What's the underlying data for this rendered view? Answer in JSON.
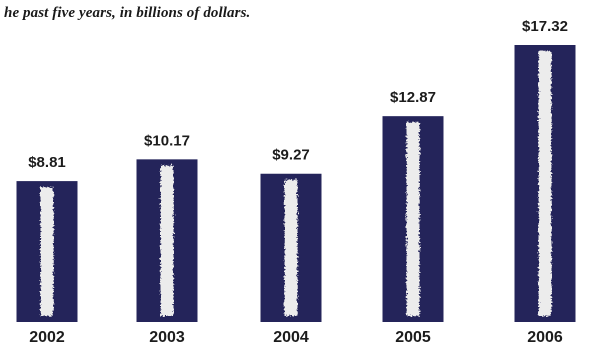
{
  "chart_data": {
    "type": "bar",
    "title": "",
    "subtitle": "he past five years, in billions of dollars.",
    "xlabel": "",
    "ylabel": "",
    "categories": [
      "2002",
      "2003",
      "2004",
      "2005",
      "2006"
    ],
    "values": [
      8.81,
      10.17,
      9.27,
      12.87,
      17.32
    ],
    "value_labels": [
      "$8.81",
      "$10.17",
      "$9.27",
      "$12.87",
      "$17.32"
    ],
    "ylim": [
      0,
      17.32
    ],
    "grid": false,
    "legend": "none",
    "colors": {
      "bar": "#24245a",
      "stripe": "#ececec"
    }
  }
}
